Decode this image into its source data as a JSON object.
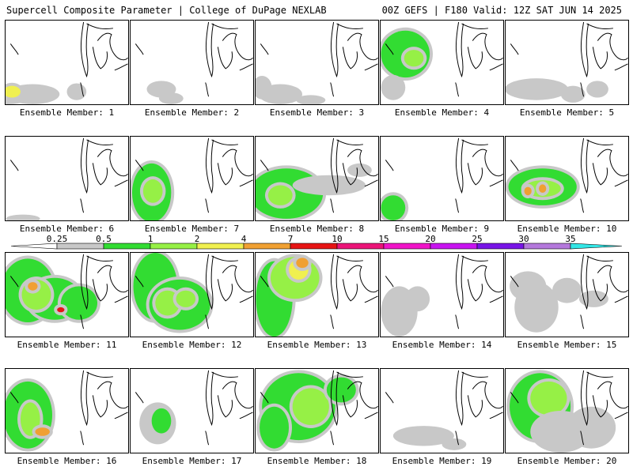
{
  "header": {
    "left": "Supercell Composite Parameter | College of DuPage NEXLAB",
    "right": "00Z GEFS | F180 Valid: 12Z SAT JUN 14 2025"
  },
  "legend": {
    "ticks": [
      "0.25",
      "0.5",
      "1",
      "2",
      "4",
      "7",
      "10",
      "15",
      "20",
      "25",
      "30",
      "35"
    ],
    "colors": [
      "#c8c8c8",
      "#32dc32",
      "#96f046",
      "#f0f050",
      "#f0a032",
      "#e61414",
      "#eb1478",
      "#f014c8",
      "#c814f0",
      "#7814e6",
      "#b478dc",
      "#32e6e6"
    ]
  },
  "panels": [
    {
      "label": "Ensemble Member: 1",
      "blobs": [
        [
          0.02,
          0.88,
          0.2,
          0.12,
          0
        ],
        [
          0.22,
          0.88,
          0.22,
          0.12,
          0
        ],
        [
          0.58,
          0.85,
          0.08,
          0.1,
          0
        ],
        [
          0.05,
          0.85,
          0.07,
          0.07,
          3
        ]
      ]
    },
    {
      "label": "Ensemble Member: 2",
      "blobs": [
        [
          0.25,
          0.82,
          0.12,
          0.1,
          0
        ],
        [
          0.33,
          0.93,
          0.1,
          0.07,
          0
        ]
      ]
    },
    {
      "label": "Ensemble Member: 3",
      "blobs": [
        [
          0.05,
          0.8,
          0.08,
          0.14,
          0
        ],
        [
          0.2,
          0.88,
          0.18,
          0.12,
          0
        ],
        [
          0.45,
          0.95,
          0.12,
          0.06,
          0
        ]
      ]
    },
    {
      "label": "Ensemble Member: 4",
      "blobs": [
        [
          0.2,
          0.4,
          0.2,
          0.28,
          1
        ],
        [
          0.27,
          0.45,
          0.08,
          0.1,
          2
        ],
        [
          0.1,
          0.8,
          0.1,
          0.15,
          0
        ]
      ]
    },
    {
      "label": "Ensemble Member: 5",
      "blobs": [
        [
          0.25,
          0.82,
          0.26,
          0.13,
          0
        ],
        [
          0.55,
          0.88,
          0.1,
          0.1,
          0
        ],
        [
          0.75,
          0.82,
          0.09,
          0.1,
          0
        ]
      ]
    },
    {
      "label": "Ensemble Member: 6",
      "blobs": [
        [
          0.14,
          0.98,
          0.14,
          0.05,
          0
        ]
      ]
    },
    {
      "label": "Ensemble Member: 7",
      "blobs": [
        [
          0.17,
          0.67,
          0.16,
          0.35,
          1
        ],
        [
          0.18,
          0.65,
          0.08,
          0.14,
          2
        ]
      ]
    },
    {
      "label": "Ensemble Member: 8",
      "blobs": [
        [
          0.25,
          0.68,
          0.3,
          0.3,
          1
        ],
        [
          0.2,
          0.7,
          0.1,
          0.12,
          2
        ],
        [
          0.6,
          0.58,
          0.3,
          0.12,
          0
        ],
        [
          0.85,
          0.4,
          0.1,
          0.08,
          0
        ]
      ]
    },
    {
      "label": "Ensemble Member: 9",
      "blobs": [
        [
          0.1,
          0.85,
          0.1,
          0.15,
          1
        ]
      ]
    },
    {
      "label": "Ensemble Member: 10",
      "blobs": [
        [
          0.3,
          0.6,
          0.28,
          0.22,
          1
        ],
        [
          0.3,
          0.62,
          0.15,
          0.1,
          2
        ],
        [
          0.18,
          0.65,
          0.03,
          0.05,
          4
        ],
        [
          0.3,
          0.62,
          0.03,
          0.05,
          4
        ]
      ]
    },
    {
      "label": "Ensemble Member: 11",
      "blobs": [
        [
          0.18,
          0.45,
          0.22,
          0.38,
          1
        ],
        [
          0.4,
          0.55,
          0.22,
          0.25,
          1
        ],
        [
          0.25,
          0.5,
          0.12,
          0.18,
          2
        ],
        [
          0.6,
          0.6,
          0.15,
          0.2,
          1
        ],
        [
          0.22,
          0.4,
          0.04,
          0.05,
          4
        ],
        [
          0.45,
          0.68,
          0.03,
          0.03,
          5
        ]
      ]
    },
    {
      "label": "Ensemble Member: 12",
      "blobs": [
        [
          0.2,
          0.4,
          0.18,
          0.4,
          1
        ],
        [
          0.4,
          0.62,
          0.25,
          0.3,
          1
        ],
        [
          0.3,
          0.6,
          0.1,
          0.15,
          2
        ],
        [
          0.45,
          0.55,
          0.08,
          0.1,
          2
        ]
      ]
    },
    {
      "label": "Ensemble Member: 13",
      "blobs": [
        [
          0.15,
          0.55,
          0.15,
          0.45,
          1
        ],
        [
          0.32,
          0.3,
          0.2,
          0.25,
          2
        ],
        [
          0.35,
          0.2,
          0.08,
          0.12,
          3
        ],
        [
          0.38,
          0.12,
          0.05,
          0.06,
          4
        ]
      ]
    },
    {
      "label": "Ensemble Member: 14",
      "blobs": [
        [
          0.15,
          0.7,
          0.15,
          0.3,
          0
        ],
        [
          0.3,
          0.55,
          0.1,
          0.15,
          0
        ]
      ]
    },
    {
      "label": "Ensemble Member: 15",
      "blobs": [
        [
          0.18,
          0.4,
          0.15,
          0.18,
          0
        ],
        [
          0.25,
          0.65,
          0.18,
          0.3,
          0
        ],
        [
          0.5,
          0.45,
          0.12,
          0.15,
          0
        ],
        [
          0.72,
          0.55,
          0.12,
          0.1,
          0
        ]
      ]
    },
    {
      "label": "Ensemble Member: 16",
      "blobs": [
        [
          0.18,
          0.55,
          0.2,
          0.4,
          1
        ],
        [
          0.2,
          0.6,
          0.08,
          0.2,
          2
        ],
        [
          0.3,
          0.75,
          0.06,
          0.05,
          4
        ]
      ]
    },
    {
      "label": "Ensemble Member: 17",
      "blobs": [
        [
          0.22,
          0.65,
          0.15,
          0.25,
          0
        ],
        [
          0.25,
          0.62,
          0.08,
          0.15,
          1
        ]
      ]
    },
    {
      "label": "Ensemble Member: 18",
      "blobs": [
        [
          0.35,
          0.45,
          0.3,
          0.4,
          1
        ],
        [
          0.45,
          0.45,
          0.15,
          0.22,
          2
        ],
        [
          0.7,
          0.25,
          0.12,
          0.15,
          1
        ],
        [
          0.15,
          0.7,
          0.12,
          0.25,
          1
        ]
      ]
    },
    {
      "label": "Ensemble Member: 19",
      "blobs": [
        [
          0.35,
          0.8,
          0.25,
          0.12,
          0
        ],
        [
          0.6,
          0.9,
          0.1,
          0.07,
          0
        ]
      ]
    },
    {
      "label": "Ensemble Member: 20",
      "blobs": [
        [
          0.28,
          0.45,
          0.25,
          0.4,
          1
        ],
        [
          0.35,
          0.35,
          0.15,
          0.2,
          2
        ],
        [
          0.45,
          0.75,
          0.25,
          0.25,
          0
        ],
        [
          0.7,
          0.7,
          0.2,
          0.25,
          0
        ]
      ]
    }
  ]
}
